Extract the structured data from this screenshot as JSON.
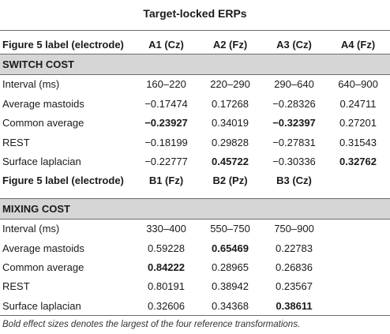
{
  "title": "Target-locked ERPs",
  "header1": {
    "label": "Figure 5 label (electrode)",
    "cols": [
      "A1 (Cz)",
      "A2 (Fz)",
      "A3 (Cz)",
      "A4 (Fz)"
    ]
  },
  "section1": "SWITCH COST",
  "rows1": [
    {
      "label": "Interval (ms)",
      "vals": [
        "160–220",
        "220–290",
        "290–640",
        "640–900"
      ],
      "bold": [
        false,
        false,
        false,
        false
      ]
    },
    {
      "label": "Average mastoids",
      "vals": [
        "−0.17474",
        "0.17268",
        "−0.28326",
        "0.24711"
      ],
      "bold": [
        false,
        false,
        false,
        false
      ]
    },
    {
      "label": "Common average",
      "vals": [
        "−0.23927",
        "0.34019",
        "−0.32397",
        "0.27201"
      ],
      "bold": [
        true,
        false,
        true,
        false
      ]
    },
    {
      "label": "REST",
      "vals": [
        "−0.18199",
        "0.29828",
        "−0.27831",
        "0.31543"
      ],
      "bold": [
        false,
        false,
        false,
        false
      ]
    },
    {
      "label": "Surface laplacian",
      "vals": [
        "−0.22777",
        "0.45722",
        "−0.30336",
        "0.32762"
      ],
      "bold": [
        false,
        true,
        false,
        true
      ]
    }
  ],
  "header2": {
    "label": "Figure 5 label (electrode)",
    "cols": [
      "B1 (Fz)",
      "B2 (Pz)",
      "B3 (Cz)",
      ""
    ]
  },
  "section2": "MIXING COST",
  "rows2": [
    {
      "label": "Interval (ms)",
      "vals": [
        "330–400",
        "550–750",
        "750–900",
        ""
      ],
      "bold": [
        false,
        false,
        false,
        false
      ]
    },
    {
      "label": "Average mastoids",
      "vals": [
        "0.59228",
        "0.65469",
        "0.22783",
        ""
      ],
      "bold": [
        false,
        true,
        false,
        false
      ]
    },
    {
      "label": "Common average",
      "vals": [
        "0.84222",
        "0.28965",
        "0.26836",
        ""
      ],
      "bold": [
        true,
        false,
        false,
        false
      ]
    },
    {
      "label": "REST",
      "vals": [
        "0.80191",
        "0.38942",
        "0.23567",
        ""
      ],
      "bold": [
        false,
        false,
        false,
        false
      ]
    },
    {
      "label": "Surface laplacian",
      "vals": [
        "0.32606",
        "0.34368",
        "0.38611",
        ""
      ],
      "bold": [
        false,
        false,
        true,
        false
      ]
    }
  ],
  "footnote": "Bold effect sizes denotes the largest of the four reference transformations."
}
